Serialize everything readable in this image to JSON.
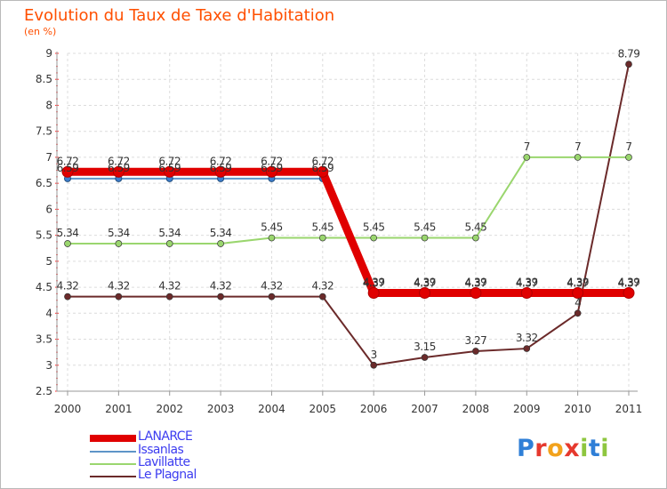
{
  "chart_data": {
    "type": "line",
    "title": "Evolution du Taux de Taxe d'Habitation",
    "unit": "(en %)",
    "categories": [
      "2000",
      "2001",
      "2002",
      "2003",
      "2004",
      "2005",
      "2006",
      "2007",
      "2008",
      "2009",
      "2010",
      "2011"
    ],
    "ylim": [
      2.5,
      9
    ],
    "yticks": [
      "2.5",
      "3",
      "3.5",
      "4",
      "4.5",
      "5",
      "5.5",
      "6",
      "6.5",
      "7",
      "7.5",
      "8",
      "8.5",
      "9"
    ],
    "grid": true,
    "series": [
      {
        "name": "LANARCE",
        "color": "#e00000",
        "values": [
          6.72,
          6.72,
          6.72,
          6.72,
          6.72,
          6.72,
          4.39,
          4.39,
          4.39,
          4.39,
          4.39,
          4.39
        ],
        "labels": [
          "6.72",
          "6.72",
          "6.72",
          "6.72",
          "6.72",
          "6.72",
          "4.39",
          "4.39",
          "4.39",
          "4.39",
          "4.39",
          "4.39"
        ]
      },
      {
        "name": "Issanlas",
        "color": "#5e95c8",
        "values": [
          6.59,
          6.59,
          6.59,
          6.59,
          6.59,
          6.59,
          4.37,
          4.37,
          4.37,
          4.37,
          4.37,
          4.37
        ],
        "labels": [
          "6.59",
          "6.59",
          "6.59",
          "6.59",
          "6.59",
          "6.59",
          "4.37",
          "4.37",
          "4.37",
          "4.37",
          "4.37",
          "4.37"
        ]
      },
      {
        "name": "Lavillatte",
        "color": "#9ad66e",
        "values": [
          5.34,
          5.34,
          5.34,
          5.34,
          5.45,
          5.45,
          5.45,
          5.45,
          5.45,
          7,
          7,
          7
        ],
        "labels": [
          "5.34",
          "5.34",
          "5.34",
          "5.34",
          "5.45",
          "5.45",
          "5.45",
          "5.45",
          "5.45",
          "7",
          "7",
          "7"
        ]
      },
      {
        "name": "Le Plagnal",
        "color": "#6b2a2a",
        "values": [
          4.32,
          4.32,
          4.32,
          4.32,
          4.32,
          4.32,
          3,
          3.15,
          3.27,
          3.32,
          4,
          8.79
        ],
        "labels": [
          "4.32",
          "4.32",
          "4.32",
          "4.32",
          "4.32",
          "4.32",
          "3",
          "3.15",
          "3.27",
          "3.32",
          "4",
          "8.79"
        ]
      }
    ]
  },
  "legend": {
    "items": [
      "LANARCE",
      "Issanlas",
      "Lavillatte",
      "Le Plagnal"
    ]
  },
  "brand": {
    "p1": "P",
    "p2": "r",
    "p3": "o",
    "p4": "x",
    "p5": "i",
    "p6": "t",
    "p7": "i"
  }
}
